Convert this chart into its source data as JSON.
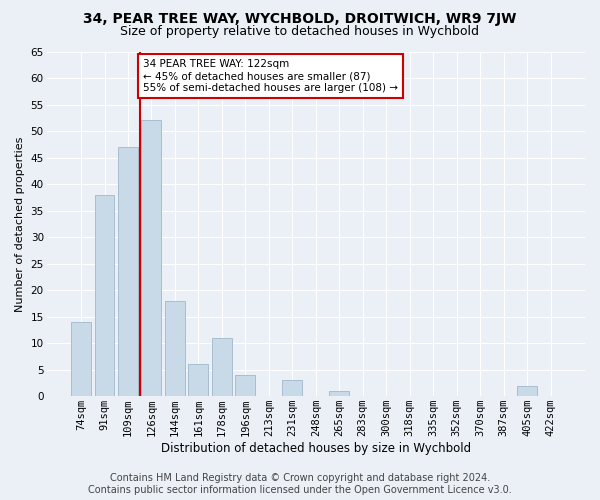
{
  "title": "34, PEAR TREE WAY, WYCHBOLD, DROITWICH, WR9 7JW",
  "subtitle": "Size of property relative to detached houses in Wychbold",
  "xlabel": "Distribution of detached houses by size in Wychbold",
  "ylabel": "Number of detached properties",
  "categories": [
    "74sqm",
    "91sqm",
    "109sqm",
    "126sqm",
    "144sqm",
    "161sqm",
    "178sqm",
    "196sqm",
    "213sqm",
    "231sqm",
    "248sqm",
    "265sqm",
    "283sqm",
    "300sqm",
    "318sqm",
    "335sqm",
    "352sqm",
    "370sqm",
    "387sqm",
    "405sqm",
    "422sqm"
  ],
  "values": [
    14,
    38,
    47,
    52,
    18,
    6,
    11,
    4,
    0,
    3,
    0,
    1,
    0,
    0,
    0,
    0,
    0,
    0,
    0,
    2,
    0
  ],
  "bar_color": "#c8d9e8",
  "bar_edge_color": "#a0b8cc",
  "vline_color": "#cc0000",
  "vline_pos": 2.5,
  "annotation_text": "34 PEAR TREE WAY: 122sqm\n← 45% of detached houses are smaller (87)\n55% of semi-detached houses are larger (108) →",
  "annotation_box_facecolor": "white",
  "annotation_box_edgecolor": "#cc0000",
  "ylim": [
    0,
    65
  ],
  "yticks": [
    0,
    5,
    10,
    15,
    20,
    25,
    30,
    35,
    40,
    45,
    50,
    55,
    60,
    65
  ],
  "footer_line1": "Contains HM Land Registry data © Crown copyright and database right 2024.",
  "footer_line2": "Contains public sector information licensed under the Open Government Licence v3.0.",
  "bg_color": "#eaf0f6",
  "plot_bg_color": "#eaf0f6",
  "title_fontsize": 10,
  "subtitle_fontsize": 9,
  "xlabel_fontsize": 8.5,
  "ylabel_fontsize": 8,
  "tick_fontsize": 7.5,
  "footer_fontsize": 7,
  "ann_fontsize": 7.5
}
